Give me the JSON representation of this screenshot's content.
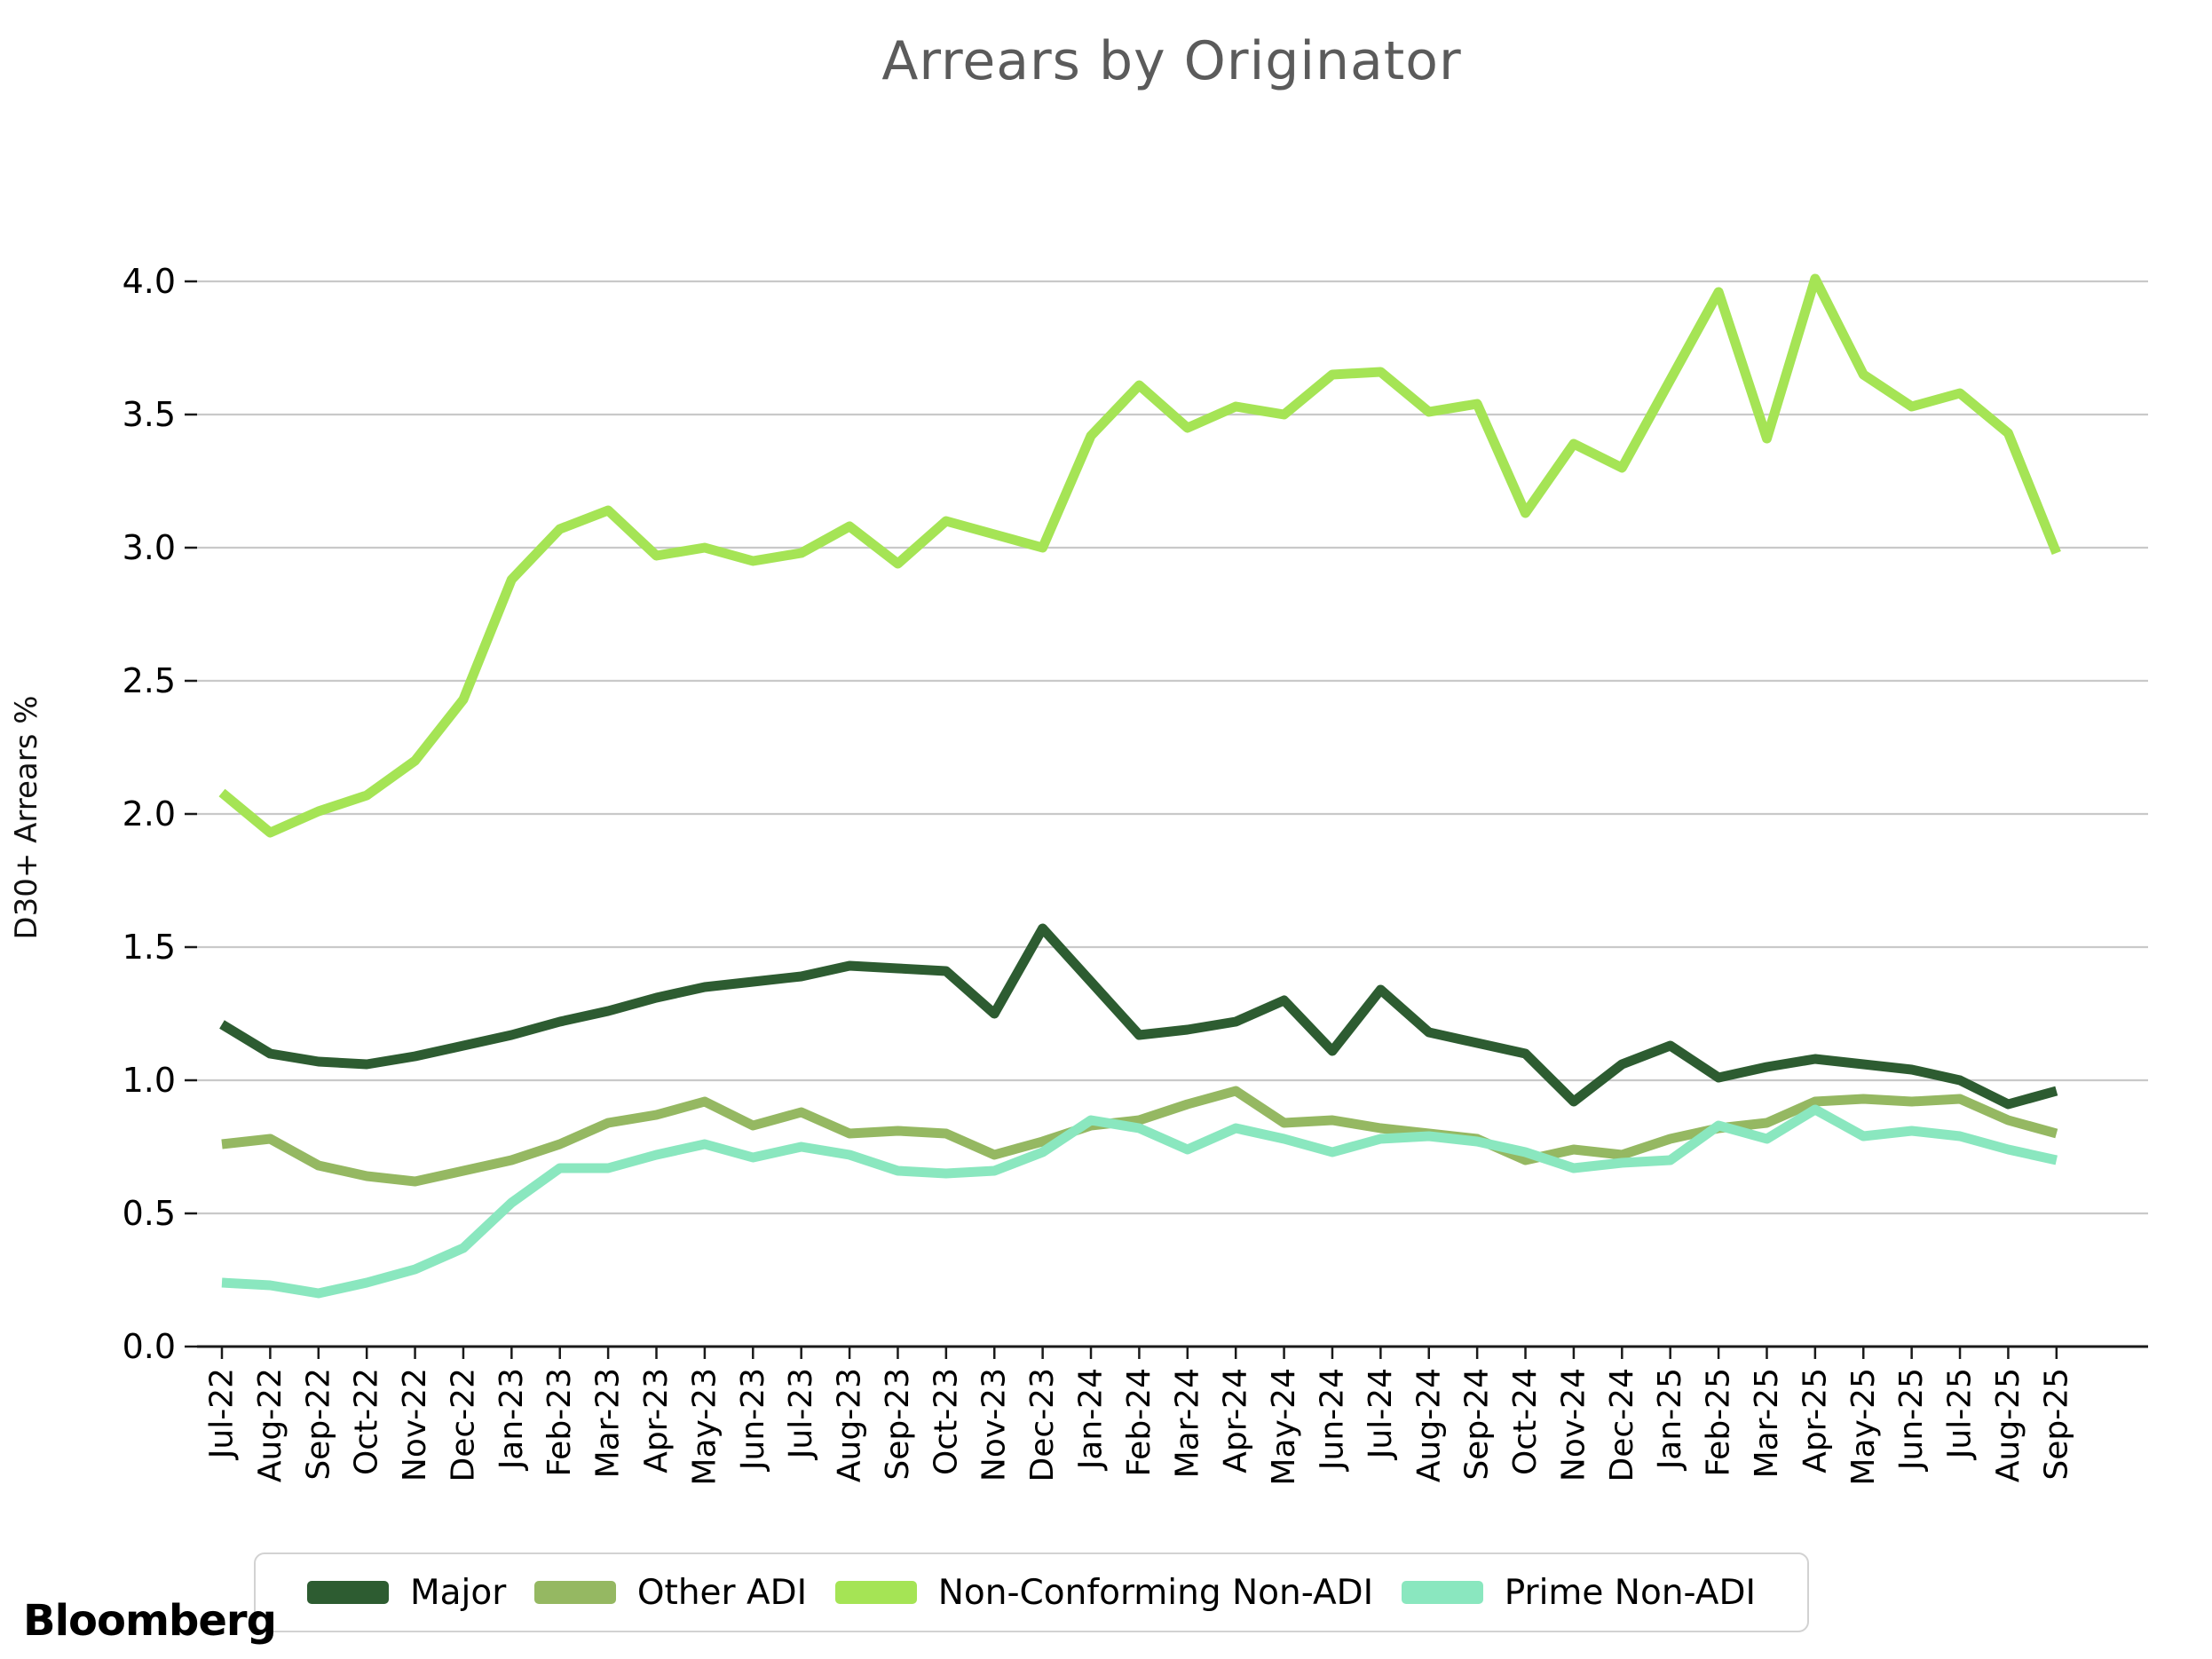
{
  "branding": {
    "logo_text": "Bloomberg"
  },
  "chart_data": {
    "type": "line",
    "title": "Arrears by Originator",
    "xlabel": "",
    "ylabel": "D30+ Arrears %",
    "ylim": [
      0.0,
      4.0
    ],
    "ytick_step": 0.5,
    "ytick_labels": [
      "0.0",
      "0.5",
      "1.0",
      "1.5",
      "2.0",
      "2.5",
      "3.0",
      "3.5",
      "4.0"
    ],
    "grid": "horizontal",
    "legend_position": "bottom",
    "categories": [
      "Jul-22",
      "Aug-22",
      "Sep-22",
      "Oct-22",
      "Nov-22",
      "Dec-22",
      "Jan-23",
      "Feb-23",
      "Mar-23",
      "Apr-23",
      "May-23",
      "Jun-23",
      "Jul-23",
      "Aug-23",
      "Sep-23",
      "Oct-23",
      "Nov-23",
      "Dec-23",
      "Jan-24",
      "Feb-24",
      "Mar-24",
      "Apr-24",
      "May-24",
      "Jun-24",
      "Jul-24",
      "Aug-24",
      "Sep-24",
      "Oct-24",
      "Nov-24",
      "Dec-24",
      "Jan-25",
      "Feb-25",
      "Mar-25",
      "Apr-25",
      "May-25",
      "Jun-25",
      "Jul-25",
      "Aug-25",
      "Sep-25"
    ],
    "series": [
      {
        "name": "Major",
        "color": "#2d5c31",
        "values": [
          1.21,
          1.1,
          1.07,
          1.06,
          1.09,
          1.13,
          1.17,
          1.22,
          1.26,
          1.31,
          1.35,
          1.37,
          1.39,
          1.43,
          1.42,
          1.41,
          1.25,
          1.57,
          1.37,
          1.17,
          1.19,
          1.22,
          1.3,
          1.11,
          1.34,
          1.18,
          1.14,
          1.1,
          0.92,
          1.06,
          1.13,
          1.01,
          1.05,
          1.08,
          1.06,
          1.04,
          1.0,
          0.91,
          0.96
        ]
      },
      {
        "name": "Other ADI",
        "color": "#95b862",
        "values": [
          0.76,
          0.78,
          0.68,
          0.64,
          0.62,
          0.66,
          0.7,
          0.76,
          0.84,
          0.87,
          0.92,
          0.83,
          0.88,
          0.8,
          0.81,
          0.8,
          0.72,
          0.77,
          0.83,
          0.85,
          0.91,
          0.96,
          0.84,
          0.85,
          0.82,
          0.8,
          0.78,
          0.7,
          0.74,
          0.72,
          0.78,
          0.82,
          0.84,
          0.92,
          0.93,
          0.92,
          0.93,
          0.85,
          0.8
        ]
      },
      {
        "name": "Non-Conforming Non-ADI",
        "color": "#a5e455",
        "values": [
          2.08,
          1.93,
          2.01,
          2.07,
          2.2,
          2.43,
          2.88,
          3.07,
          3.14,
          2.97,
          3.0,
          2.95,
          2.98,
          3.08,
          2.94,
          3.1,
          3.05,
          3.0,
          3.42,
          3.61,
          3.45,
          3.53,
          3.5,
          3.65,
          3.66,
          3.51,
          3.54,
          3.13,
          3.39,
          3.3,
          3.63,
          3.96,
          3.41,
          4.01,
          3.65,
          3.53,
          3.58,
          3.43,
          2.98
        ]
      },
      {
        "name": "Prime Non-ADI",
        "color": "#8ae7bf",
        "values": [
          0.24,
          0.23,
          0.2,
          0.24,
          0.29,
          0.37,
          0.54,
          0.67,
          0.67,
          0.72,
          0.76,
          0.71,
          0.75,
          0.72,
          0.66,
          0.65,
          0.66,
          0.73,
          0.85,
          0.82,
          0.74,
          0.82,
          0.78,
          0.73,
          0.78,
          0.79,
          0.77,
          0.73,
          0.67,
          0.69,
          0.7,
          0.83,
          0.78,
          0.89,
          0.79,
          0.81,
          0.79,
          0.74,
          0.7
        ]
      }
    ]
  }
}
